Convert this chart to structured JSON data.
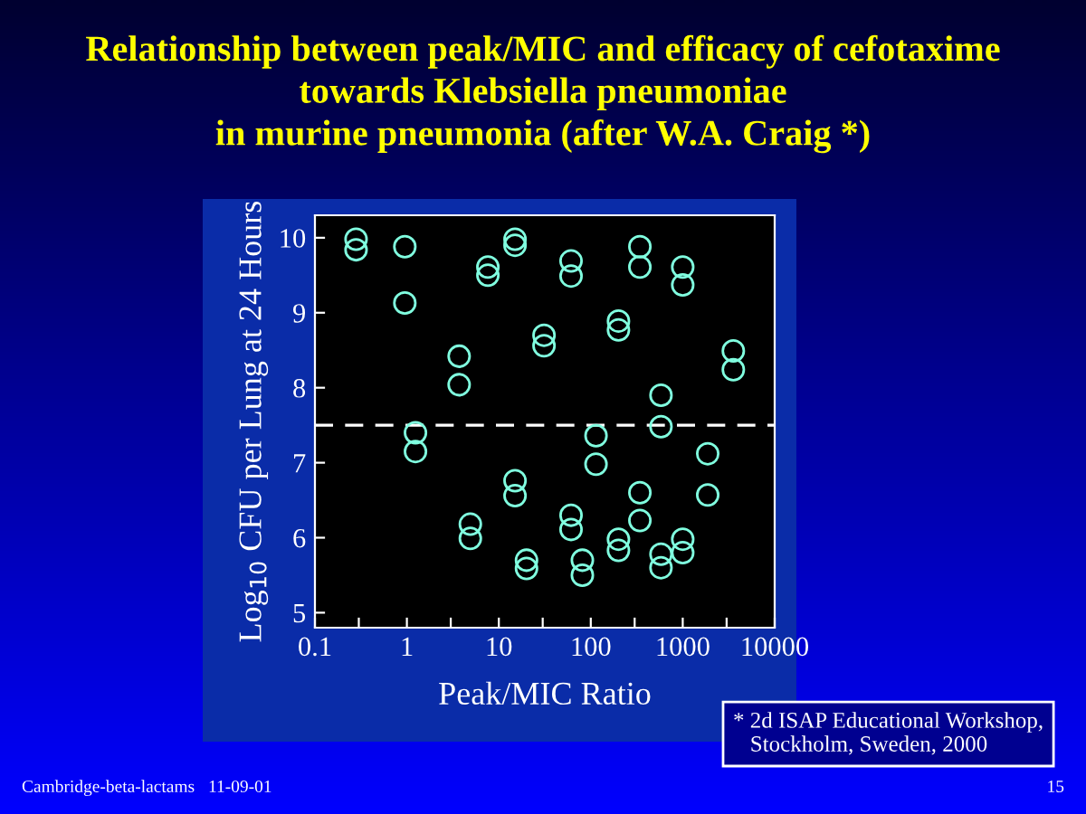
{
  "chart_data": {
    "type": "scatter",
    "title": "Relationship between peak/MIC and efficacy of cefotaxime\ntowards Klebsiella pneumoniae\nin murine pneumonia (after W.A. Craig *)",
    "xlabel": "Peak/MIC Ratio",
    "ylabel": "Log$_{10}$ CFU per Lung at 24 Hours",
    "log": "x",
    "xlim": [
      0.1,
      10000
    ],
    "ylim": [
      4.8,
      10.3
    ],
    "xticks": [
      0.1,
      {
        "value": 0.3,
        "label": null
      },
      1,
      {
        "value": 3,
        "label": null
      },
      10,
      {
        "value": 30,
        "label": null
      },
      100,
      {
        "value": 300,
        "label": null
      },
      1000,
      {
        "value": 3000,
        "label": null
      },
      10000
    ],
    "yticks": [
      5,
      6,
      7,
      8,
      9,
      10
    ],
    "grid": false,
    "marker": "circle",
    "series": [
      {
        "color": "#80ffe0",
        "x": [
          0.28,
          0.28,
          0.95,
          0.95,
          1.24,
          1.24,
          3.7,
          3.7,
          4.9,
          4.9,
          7.6,
          7.6,
          15,
          15,
          15,
          15,
          20,
          20,
          31,
          31,
          61,
          61,
          61,
          61,
          81,
          81,
          114,
          114,
          200,
          200,
          200,
          200,
          342,
          342,
          342,
          342,
          580,
          580,
          580,
          580,
          1000,
          1000,
          1000,
          1000,
          1870,
          1870,
          3550,
          3550
        ],
        "values": [
          9.98,
          9.84,
          9.88,
          9.13,
          7.4,
          7.15,
          8.42,
          8.04,
          6.18,
          5.99,
          9.61,
          9.5,
          9.98,
          9.9,
          6.76,
          6.56,
          5.7,
          5.59,
          8.7,
          8.56,
          9.69,
          9.49,
          6.3,
          6.11,
          5.7,
          5.5,
          7.36,
          6.98,
          8.89,
          8.77,
          5.98,
          5.83,
          9.88,
          9.61,
          6.6,
          6.23,
          7.9,
          7.48,
          5.78,
          5.6,
          9.61,
          9.37,
          5.98,
          5.8,
          7.12,
          6.57,
          8.49,
          8.24
        ]
      }
    ],
    "ref_lines": [
      {
        "axis": "y",
        "value": 7.5,
        "color": "#ffffff",
        "line_style": "dashed"
      }
    ],
    "annotations": [
      "* 2d ISAP Educational Workshop,\n   Stockholm, Sweden, 2000",
      "Cambridge-beta-lactams",
      "11-09-01",
      "15"
    ]
  }
}
